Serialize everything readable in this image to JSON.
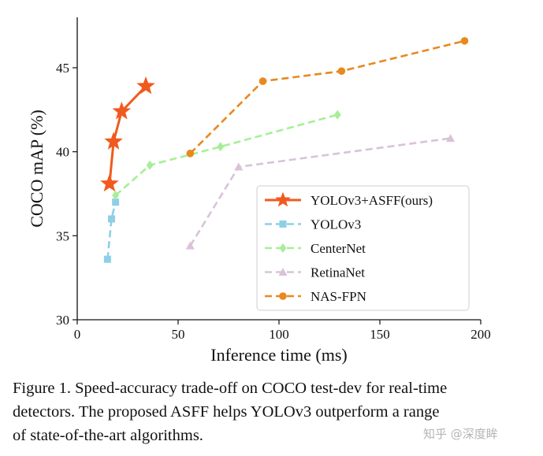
{
  "chart_data": {
    "type": "line",
    "title": "",
    "xlabel": "Inference time (ms)",
    "ylabel": "COCO mAP (%)",
    "xlim": [
      0,
      200
    ],
    "ylim": [
      30,
      48
    ],
    "xticks": [
      "0",
      "50",
      "100",
      "150",
      "200"
    ],
    "yticks": [
      "30",
      "35",
      "40",
      "45"
    ],
    "grid": false,
    "legend_position": "lower-right",
    "series": [
      {
        "name": "YOLOv3+ASFF(ours)",
        "color": "#f05a1e",
        "marker": "star",
        "dashed": false,
        "x": [
          16,
          18,
          22,
          34
        ],
        "y": [
          38.1,
          40.6,
          42.4,
          43.9
        ]
      },
      {
        "name": "YOLOv3",
        "color": "#8ecfe6",
        "marker": "square",
        "dashed": true,
        "x": [
          15,
          17,
          19
        ],
        "y": [
          33.6,
          36.0,
          37.0
        ]
      },
      {
        "name": "CenterNet",
        "color": "#a8ee98",
        "marker": "diamond",
        "dashed": true,
        "x": [
          19,
          36,
          71,
          129
        ],
        "y": [
          37.4,
          39.2,
          40.3,
          42.2
        ]
      },
      {
        "name": "RetinaNet",
        "color": "#d9c3d9",
        "marker": "triangle",
        "dashed": true,
        "x": [
          56,
          80,
          185
        ],
        "y": [
          34.4,
          39.1,
          40.8
        ]
      },
      {
        "name": "NAS-FPN",
        "color": "#e8891e",
        "marker": "circle",
        "dashed": true,
        "x": [
          56,
          92,
          131,
          192
        ],
        "y": [
          39.9,
          44.2,
          44.8,
          46.6
        ]
      }
    ]
  },
  "caption": "Figure 1. Speed-accuracy trade-off on COCO test-dev for real-time\ndetectors. The proposed ASFF helps YOLOv3 outperform a range\nof state-of-the-art algorithms.",
  "watermark": "知乎 @深度眸"
}
